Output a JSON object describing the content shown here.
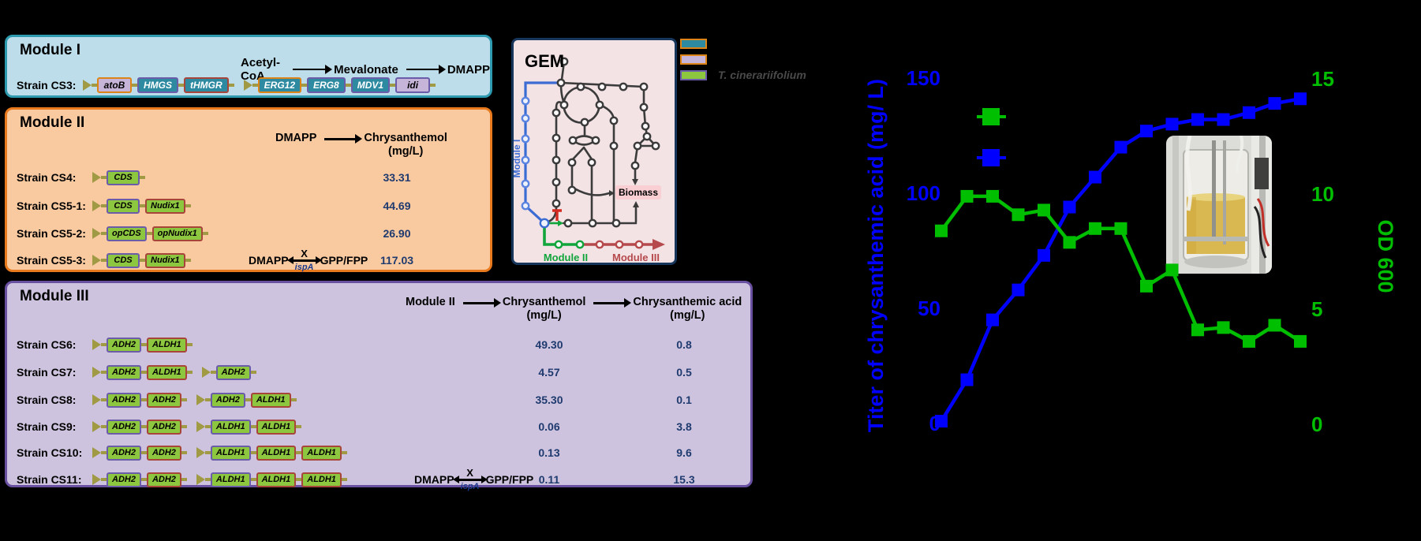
{
  "palette": {
    "gene_fill": {
      "green": "#8dc63f",
      "teal": "#2e8aa0",
      "lavender": "#c6b4d9"
    },
    "gene_border": {
      "orange": "#dd8418",
      "purple": "#6a5ca8",
      "red": "#a8453a"
    },
    "promoter": "#a09a45",
    "value_text": "#1e3a6e",
    "module1_bg": "#bdddea",
    "module1_border": "#2e9ab0",
    "module2_bg": "#f9c9a0",
    "module2_border": "#e8791d",
    "module3_bg": "#cdc3de",
    "module3_border": "#6950a1",
    "gem_bg": "#f3e3e5",
    "gem_border": "#17365c",
    "series_titer": "#0000ff",
    "series_od": "#00bf00"
  },
  "module1": {
    "title": "Module I",
    "pathway": [
      "Acetyl-CoA",
      "Mevalonate",
      "DMAPP"
    ],
    "rows": [
      {
        "label": "Strain CS3:",
        "cassettes": [
          [
            [
              "atoB",
              "lavender",
              "orange"
            ],
            [
              "HMGS",
              "teal",
              "purple"
            ],
            [
              "tHMGR",
              "teal",
              "red"
            ]
          ],
          [
            [
              "ERG12",
              "teal",
              "orange"
            ],
            [
              "ERG8",
              "teal",
              "purple"
            ],
            [
              "MDV1",
              "teal",
              "purple"
            ],
            [
              "idi",
              "lavender",
              "purple"
            ]
          ]
        ],
        "values": []
      }
    ]
  },
  "module2": {
    "title": "Module II",
    "header": {
      "from": "DMAPP",
      "to": "Chrysanthemol",
      "to_unit": "(mg/L)"
    },
    "rows": [
      {
        "label": "Strain CS4:",
        "cassettes": [
          [
            [
              "CDS",
              "green",
              "purple"
            ]
          ]
        ],
        "values": [
          "33.31"
        ]
      },
      {
        "label": "Strain CS5-1:",
        "cassettes": [
          [
            [
              "CDS",
              "green",
              "purple"
            ],
            [
              "Nudix1",
              "green",
              "red"
            ]
          ]
        ],
        "values": [
          "44.69"
        ]
      },
      {
        "label": "Strain CS5-2:",
        "cassettes": [
          [
            [
              "opCDS",
              "green",
              "purple"
            ],
            [
              "opNudix1",
              "green",
              "red"
            ]
          ]
        ],
        "values": [
          "26.90"
        ]
      },
      {
        "label": "Strain CS5-3:",
        "cassettes": [
          [
            [
              "CDS",
              "green",
              "purple"
            ],
            [
              "Nudix1",
              "green",
              "red"
            ]
          ]
        ],
        "values": [
          "117.03"
        ],
        "ispa": true
      }
    ]
  },
  "module3": {
    "title": "Module III",
    "header": {
      "from": "Module II",
      "mid": "Chrysanthemol",
      "mid_unit": "(mg/L)",
      "to": "Chrysanthemic acid",
      "to_unit": "(mg/L)"
    },
    "rows": [
      {
        "label": "Strain CS6:",
        "cassettes": [
          [
            [
              "ADH2",
              "green",
              "purple"
            ],
            [
              "ALDH1",
              "green",
              "red"
            ]
          ]
        ],
        "values": [
          "49.30",
          "0.8"
        ]
      },
      {
        "label": "Strain CS7:",
        "cassettes": [
          [
            [
              "ADH2",
              "green",
              "purple"
            ],
            [
              "ALDH1",
              "green",
              "red"
            ]
          ],
          [
            [
              "ADH2",
              "green",
              "purple"
            ]
          ]
        ],
        "values": [
          "4.57",
          "0.5"
        ]
      },
      {
        "label": "Strain CS8:",
        "cassettes": [
          [
            [
              "ADH2",
              "green",
              "purple"
            ],
            [
              "ADH2",
              "green",
              "red"
            ]
          ],
          [
            [
              "ADH2",
              "green",
              "purple"
            ],
            [
              "ALDH1",
              "green",
              "red"
            ]
          ]
        ],
        "values": [
          "35.30",
          "0.1"
        ]
      },
      {
        "label": "Strain CS9:",
        "cassettes": [
          [
            [
              "ADH2",
              "green",
              "purple"
            ],
            [
              "ADH2",
              "green",
              "red"
            ]
          ],
          [
            [
              "ALDH1",
              "green",
              "purple"
            ],
            [
              "ALDH1",
              "green",
              "red"
            ]
          ]
        ],
        "values": [
          "0.06",
          "3.8"
        ]
      },
      {
        "label": "Strain CS10:",
        "cassettes": [
          [
            [
              "ADH2",
              "green",
              "purple"
            ],
            [
              "ADH2",
              "green",
              "red"
            ]
          ],
          [
            [
              "ALDH1",
              "green",
              "purple"
            ],
            [
              "ALDH1",
              "green",
              "red"
            ],
            [
              "ALDH1",
              "green",
              "red"
            ]
          ]
        ],
        "values": [
          "0.13",
          "9.6"
        ]
      },
      {
        "label": "Strain CS11:",
        "cassettes": [
          [
            [
              "ADH2",
              "green",
              "purple"
            ],
            [
              "ADH2",
              "green",
              "red"
            ]
          ],
          [
            [
              "ALDH1",
              "green",
              "purple"
            ],
            [
              "ALDH1",
              "green",
              "red"
            ],
            [
              "ALDH1",
              "green",
              "red"
            ]
          ]
        ],
        "values": [
          "0.11",
          "15.3"
        ],
        "ispa": true
      }
    ]
  },
  "ispa_annotation": {
    "left": "DMAPP",
    "block": "X",
    "enzyme": "ispA",
    "right": "GPP/FPP"
  },
  "gem": {
    "title": "GEM",
    "biomass": "Biomass",
    "module1_label": "Module I",
    "module2_label": "Module II",
    "module3_label": "Module III"
  },
  "legend": {
    "items": [
      {
        "fill": "#2e8aa0",
        "border": "#dd8418",
        "label": ""
      },
      {
        "fill": "#c6b4d9",
        "border": "#dd8418",
        "label": ""
      },
      {
        "fill": "#8dc63f",
        "border": "#6a5ca8",
        "label": "T. cinerariifolium"
      }
    ]
  },
  "photo": {
    "description": "benchtop bioreactor with yellow culture broth"
  },
  "chart_data": {
    "type": "line",
    "title": "",
    "x_index": [
      0,
      1,
      2,
      3,
      4,
      5,
      6,
      7,
      8,
      9,
      10,
      11,
      12,
      13,
      14
    ],
    "x_axis": {
      "label": "",
      "tick_labels_visible": false
    },
    "series": [
      {
        "name": "Titer of chrysanthemic acid",
        "axis": "left",
        "color": "#0000ff",
        "marker": "square",
        "values": [
          1,
          19,
          45,
          58,
          73,
          94,
          107,
          120,
          127,
          130,
          132,
          132,
          135,
          139,
          141
        ]
      },
      {
        "name": "OD 600",
        "axis": "right",
        "color": "#00bf00",
        "marker": "square",
        "values": [
          8.4,
          9.9,
          9.9,
          9.1,
          9.3,
          7.9,
          8.5,
          8.5,
          6.0,
          6.7,
          4.1,
          4.2,
          3.6,
          4.3,
          3.6
        ]
      }
    ],
    "left_axis": {
      "label": "Titer of chrysanthemic acid (mg/ L)",
      "color": "#0000ff",
      "ticks": [
        0,
        50,
        100,
        150
      ],
      "range": [
        0,
        150
      ]
    },
    "right_axis": {
      "label": "OD 600",
      "color": "#00bf00",
      "ticks": [
        0,
        5,
        10,
        15
      ],
      "range": [
        0,
        15
      ]
    },
    "legend": {
      "labels_visible": false,
      "entries": [
        {
          "color": "#00bf00"
        },
        {
          "color": "#0000ff"
        }
      ]
    },
    "grid": false
  }
}
